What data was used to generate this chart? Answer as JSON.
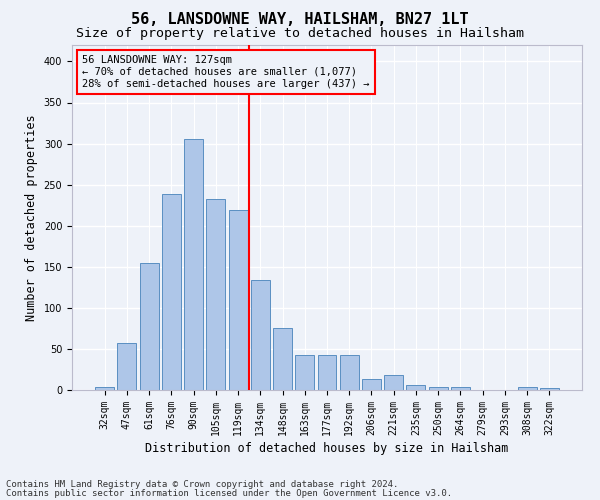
{
  "title1": "56, LANSDOWNE WAY, HAILSHAM, BN27 1LT",
  "title2": "Size of property relative to detached houses in Hailsham",
  "xlabel": "Distribution of detached houses by size in Hailsham",
  "ylabel": "Number of detached properties",
  "footnote1": "Contains HM Land Registry data © Crown copyright and database right 2024.",
  "footnote2": "Contains public sector information licensed under the Open Government Licence v3.0.",
  "bar_labels": [
    "32sqm",
    "47sqm",
    "61sqm",
    "76sqm",
    "90sqm",
    "105sqm",
    "119sqm",
    "134sqm",
    "148sqm",
    "163sqm",
    "177sqm",
    "192sqm",
    "206sqm",
    "221sqm",
    "235sqm",
    "250sqm",
    "264sqm",
    "279sqm",
    "293sqm",
    "308sqm",
    "322sqm"
  ],
  "bar_values": [
    4,
    57,
    155,
    238,
    305,
    232,
    219,
    134,
    76,
    43,
    43,
    43,
    13,
    18,
    6,
    4,
    4,
    0,
    0,
    4,
    3
  ],
  "bar_color": "#aec6e8",
  "bar_edge_color": "#5a8fc2",
  "vline_color": "red",
  "vline_pos": 6.5,
  "annotation_line1": "56 LANSDOWNE WAY: 127sqm",
  "annotation_line2": "← 70% of detached houses are smaller (1,077)",
  "annotation_line3": "28% of semi-detached houses are larger (437) →",
  "ylim": [
    0,
    420
  ],
  "yticks": [
    0,
    50,
    100,
    150,
    200,
    250,
    300,
    350,
    400
  ],
  "bg_color": "#eef2f9",
  "grid_color": "#ffffff",
  "title1_fontsize": 11,
  "title2_fontsize": 9.5,
  "xlabel_fontsize": 8.5,
  "ylabel_fontsize": 8.5,
  "footnote_fontsize": 6.5,
  "tick_fontsize": 7,
  "annot_fontsize": 7.5
}
